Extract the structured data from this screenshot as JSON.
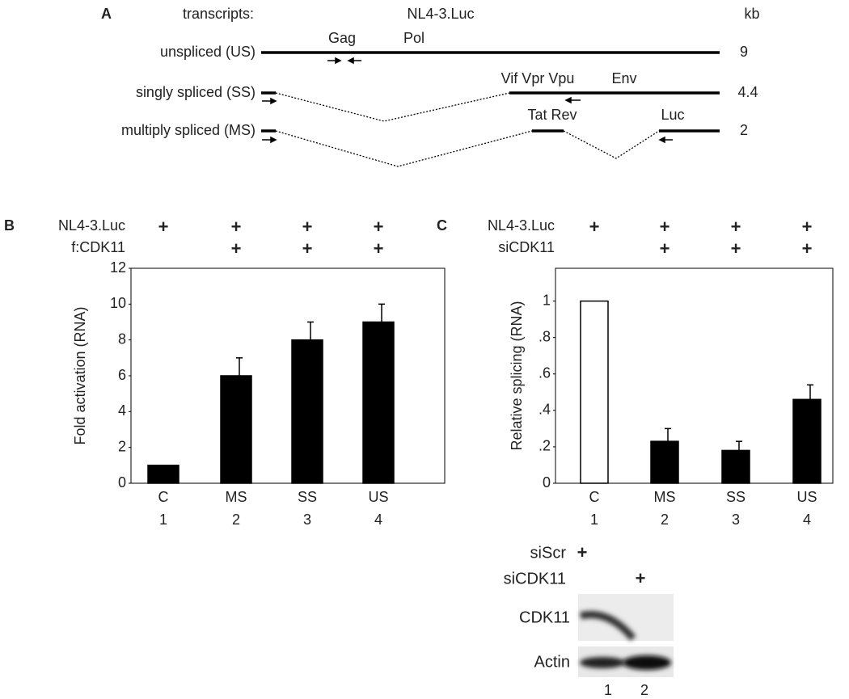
{
  "panel_a": {
    "panel": "A",
    "header": "transcripts:",
    "construct": "NL4-3.Luc",
    "unit": "kb",
    "transcripts": [
      {
        "label": "unspliced (US)",
        "kb": "9"
      },
      {
        "label": "singly spliced (SS)",
        "kb": "4.4"
      },
      {
        "label": "multiply spliced (MS)",
        "kb": "2"
      }
    ],
    "genes": [
      "Gag",
      "Pol",
      "Vif Vpr Vpu",
      "Env",
      "Tat Rev",
      "Luc"
    ]
  },
  "chart_data": [
    {
      "type": "bar",
      "panel": "B",
      "ylabel": "Fold activation (RNA)",
      "conditions": [
        {
          "label": "NL4-3.Luc",
          "marks": [
            "+",
            "+",
            "+",
            "+"
          ]
        },
        {
          "label": "f:CDK11",
          "marks": [
            null,
            "+",
            "+",
            "+"
          ]
        }
      ],
      "categories": [
        "C",
        "MS",
        "SS",
        "US"
      ],
      "lanes": [
        "1",
        "2",
        "3",
        "4"
      ],
      "values": [
        1,
        6,
        8,
        9
      ],
      "errors": [
        0,
        1,
        1,
        1
      ],
      "colors": [
        "#000000",
        "#000000",
        "#000000",
        "#000000"
      ],
      "ylim": [
        0,
        12
      ],
      "yticks": [
        0,
        2,
        4,
        6,
        8,
        10,
        12
      ]
    },
    {
      "type": "bar",
      "panel": "C",
      "ylabel": "Relative splicing (RNA)",
      "conditions": [
        {
          "label": "NL4-3.Luc",
          "marks": [
            "+",
            "+",
            "+",
            "+"
          ]
        },
        {
          "label": "siCDK11",
          "marks": [
            null,
            "+",
            "+",
            "+"
          ]
        }
      ],
      "categories": [
        "C",
        "MS",
        "SS",
        "US"
      ],
      "lanes": [
        "1",
        "2",
        "3",
        "4"
      ],
      "values": [
        1,
        0.23,
        0.18,
        0.46
      ],
      "errors": [
        0,
        0.07,
        0.05,
        0.08
      ],
      "colors": [
        "#ffffff",
        "#000000",
        "#000000",
        "#000000"
      ],
      "ylim": [
        0,
        1.18
      ],
      "yticks": [
        0,
        {
          "value": 0.2,
          "label": ".2"
        },
        {
          "value": 0.4,
          "label": ".4"
        },
        {
          "value": 0.6,
          "label": ".6"
        },
        {
          "value": 0.8,
          "label": ".8"
        },
        1
      ]
    }
  ],
  "blot": {
    "conditions": [
      {
        "label": "siScr",
        "marks": [
          "+",
          null
        ]
      },
      {
        "label": "siCDK11",
        "marks": [
          null,
          "+"
        ]
      }
    ],
    "bands": [
      "CDK11",
      "Actin"
    ],
    "lanes": [
      "1",
      "2"
    ]
  }
}
